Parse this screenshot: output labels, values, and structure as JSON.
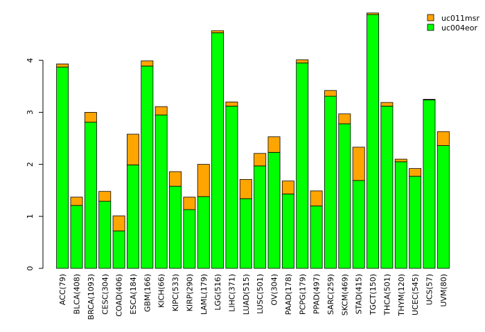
{
  "chart_data": {
    "type": "bar",
    "stacked": true,
    "categories": [
      "ACC(79)",
      "BLCA(408)",
      "BRCA(1093)",
      "CESC(304)",
      "COAD(406)",
      "ESCA(184)",
      "GBM(166)",
      "KICH(66)",
      "KIPC(533)",
      "KIRP(290)",
      "LAML(179)",
      "LGG(516)",
      "LIHC(371)",
      "LUAD(515)",
      "LUSC(501)",
      "OV(304)",
      "PAAD(178)",
      "PCPG(179)",
      "PPAD(497)",
      "SARC(259)",
      "SKCM(469)",
      "STAD(415)",
      "TGCT(150)",
      "THCA(501)",
      "THYM(120)",
      "UCEC(545)",
      "UCS(57)",
      "UVM(80)"
    ],
    "series": [
      {
        "name": "uc004eor",
        "color": "#00ff00",
        "values": [
          3.87,
          1.21,
          2.81,
          1.29,
          0.72,
          1.99,
          3.89,
          2.95,
          1.58,
          1.13,
          1.38,
          4.53,
          3.12,
          1.34,
          1.97,
          2.23,
          1.43,
          3.95,
          1.2,
          3.31,
          2.78,
          1.69,
          4.88,
          3.12,
          2.05,
          1.77,
          3.24,
          2.36
        ]
      },
      {
        "name": "uc011msr",
        "color": "#ffa500",
        "values": [
          0.06,
          0.16,
          0.19,
          0.19,
          0.29,
          0.59,
          0.1,
          0.16,
          0.28,
          0.24,
          0.62,
          0.04,
          0.08,
          0.37,
          0.24,
          0.3,
          0.25,
          0.06,
          0.29,
          0.11,
          0.19,
          0.64,
          0.03,
          0.07,
          0.05,
          0.15,
          0.01,
          0.27
        ]
      }
    ],
    "legend": [
      "uc011msr",
      "uc004eor"
    ],
    "legend_position": "top-right",
    "y_ticks": [
      "0",
      "1",
      "2",
      "3",
      "4"
    ],
    "ylim": [
      0,
      4.9
    ],
    "grid": false,
    "title": "",
    "xlabel": "",
    "ylabel": ""
  }
}
